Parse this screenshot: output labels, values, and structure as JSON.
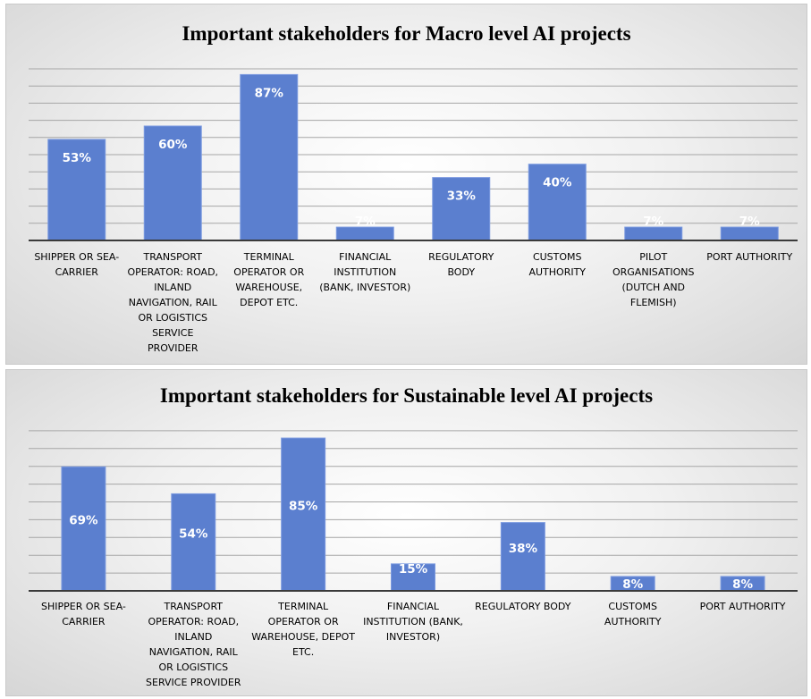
{
  "chart_data": [
    {
      "type": "bar",
      "title": "Important stakeholders for Macro level AI projects",
      "categories": [
        "SHIPPER OR SEA-CARRIER",
        "TRANSPORT OPERATOR: ROAD, INLAND NAVIGATION, RAIL OR LOGISTICS SERVICE PROVIDER",
        "TERMINAL OPERATOR OR WAREHOUSE, DEPOT ETC.",
        "FINANCIAL INSTITUTION (BANK, INVESTOR)",
        "REGULATORY BODY",
        "CUSTOMS AUTHORITY",
        "PILOT ORGANISATIONS (DUTCH AND FLEMISH)",
        "PORT AUTHORITY"
      ],
      "values": [
        53,
        60,
        87,
        7,
        33,
        40,
        7,
        7
      ],
      "data_labels": [
        "53%",
        "60%",
        "87%",
        "7%",
        "33%",
        "40%",
        "7%",
        "7%"
      ],
      "ylim": [
        0,
        90
      ],
      "grid": true,
      "bar_color": "#5b7fcf"
    },
    {
      "type": "bar",
      "title": "Important stakeholders for Sustainable level AI projects",
      "categories": [
        "SHIPPER OR SEA-CARRIER",
        "TRANSPORT OPERATOR: ROAD, INLAND NAVIGATION, RAIL OR LOGISTICS SERVICE PROVIDER",
        "TERMINAL OPERATOR OR WAREHOUSE, DEPOT ETC.",
        "FINANCIAL INSTITUTION (BANK, INVESTOR)",
        "REGULATORY BODY",
        "CUSTOMS AUTHORITY",
        "PORT AUTHORITY"
      ],
      "values": [
        69,
        54,
        85,
        15,
        38,
        8,
        8
      ],
      "data_labels": [
        "69%",
        "54%",
        "85%",
        "15%",
        "38%",
        "8%",
        "8%"
      ],
      "ylim": [
        0,
        90
      ],
      "grid": true,
      "bar_color": "#5b7fcf"
    }
  ]
}
